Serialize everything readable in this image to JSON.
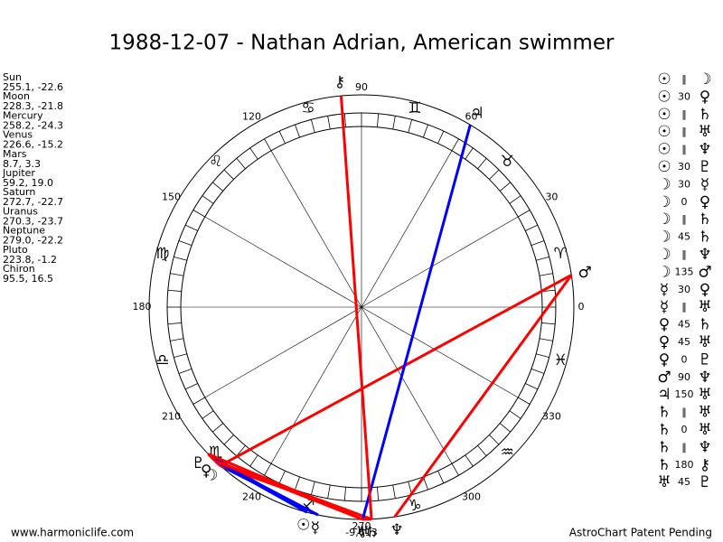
{
  "title": "1988-12-07 - Nathan Adrian, American swimmer",
  "planets": [
    {
      "name": "Sun",
      "position": "255.1, -22.6",
      "glyph": "☉"
    },
    {
      "name": "Moon",
      "position": "228.3, -21.8",
      "glyph": "☽"
    },
    {
      "name": "Mercury",
      "position": "258.2, -24.3",
      "glyph": "☿"
    },
    {
      "name": "Venus",
      "position": "226.6, -15.2",
      "glyph": "♀"
    },
    {
      "name": "Mars",
      "position": "8.7, 3.3",
      "glyph": "♂"
    },
    {
      "name": "Jupiter",
      "position": "59.2, 19.0",
      "glyph": "♃"
    },
    {
      "name": "Saturn",
      "position": "272.7, -22.7",
      "glyph": "♄"
    },
    {
      "name": "Uranus",
      "position": "270.3, -23.7",
      "glyph": "♅"
    },
    {
      "name": "Neptune",
      "position": "279.0, -22.2",
      "glyph": "♆"
    },
    {
      "name": "Pluto",
      "position": "223.8, -1.2",
      "glyph": "♇"
    },
    {
      "name": "Chiron",
      "position": "95.5, 16.5",
      "glyph": "⚷"
    }
  ],
  "signs": [
    "♈",
    "♉",
    "♊",
    "♋",
    "♌",
    "♍",
    "♎",
    "♏",
    "♐",
    "♑",
    "♒",
    "♓"
  ],
  "degree_labels": [
    0,
    30,
    60,
    90,
    120,
    150,
    180,
    210,
    240,
    270,
    300,
    330
  ],
  "bottom_label": "-9,613",
  "aspects": [
    {
      "p1": "☉",
      "aspect": "‖",
      "p2": "☽"
    },
    {
      "p1": "☉",
      "aspect": "30",
      "p2": "♀",
      "color": "#0000ff"
    },
    {
      "p1": "☉",
      "aspect": "‖",
      "p2": "♄"
    },
    {
      "p1": "☉",
      "aspect": "‖",
      "p2": "♅"
    },
    {
      "p1": "☉",
      "aspect": "‖",
      "p2": "♆"
    },
    {
      "p1": "☉",
      "aspect": "30",
      "p2": "♇",
      "color": "#0000ff"
    },
    {
      "p1": "☽",
      "aspect": "30",
      "p2": "☿",
      "color": "#0000ff"
    },
    {
      "p1": "☽",
      "aspect": "0",
      "p2": "♀",
      "color": "#ff0000"
    },
    {
      "p1": "☽",
      "aspect": "‖",
      "p2": "♄"
    },
    {
      "p1": "☽",
      "aspect": "45",
      "p2": "♄",
      "color": "#ff0000"
    },
    {
      "p1": "☽",
      "aspect": "‖",
      "p2": "♆"
    },
    {
      "p1": "☽",
      "aspect": "135",
      "p2": "♂",
      "color": "#ff0000"
    },
    {
      "p1": "☿",
      "aspect": "30",
      "p2": "♀",
      "color": "#0000ff"
    },
    {
      "p1": "☿",
      "aspect": "‖",
      "p2": "♅"
    },
    {
      "p1": "♀",
      "aspect": "45",
      "p2": "♄",
      "color": "#ff0000"
    },
    {
      "p1": "♀",
      "aspect": "45",
      "p2": "♅",
      "color": "#ff0000"
    },
    {
      "p1": "♀",
      "aspect": "0",
      "p2": "♇",
      "color": "#ff0000"
    },
    {
      "p1": "♂",
      "aspect": "90",
      "p2": "♆",
      "color": "#ff0000"
    },
    {
      "p1": "♃",
      "aspect": "150",
      "p2": "♅",
      "color": "#0000ff"
    },
    {
      "p1": "♄",
      "aspect": "‖",
      "p2": "♅"
    },
    {
      "p1": "♄",
      "aspect": "0",
      "p2": "♅",
      "color": "#ff0000"
    },
    {
      "p1": "♄",
      "aspect": "‖",
      "p2": "♆"
    },
    {
      "p1": "♄",
      "aspect": "180",
      "p2": "⚷",
      "color": "#ff0000"
    },
    {
      "p1": "♅",
      "aspect": "45",
      "p2": "♇",
      "color": "#ff0000"
    }
  ],
  "footer_left": "www.harmoniclife.com",
  "footer_right": "AstroChart Patent Pending"
}
